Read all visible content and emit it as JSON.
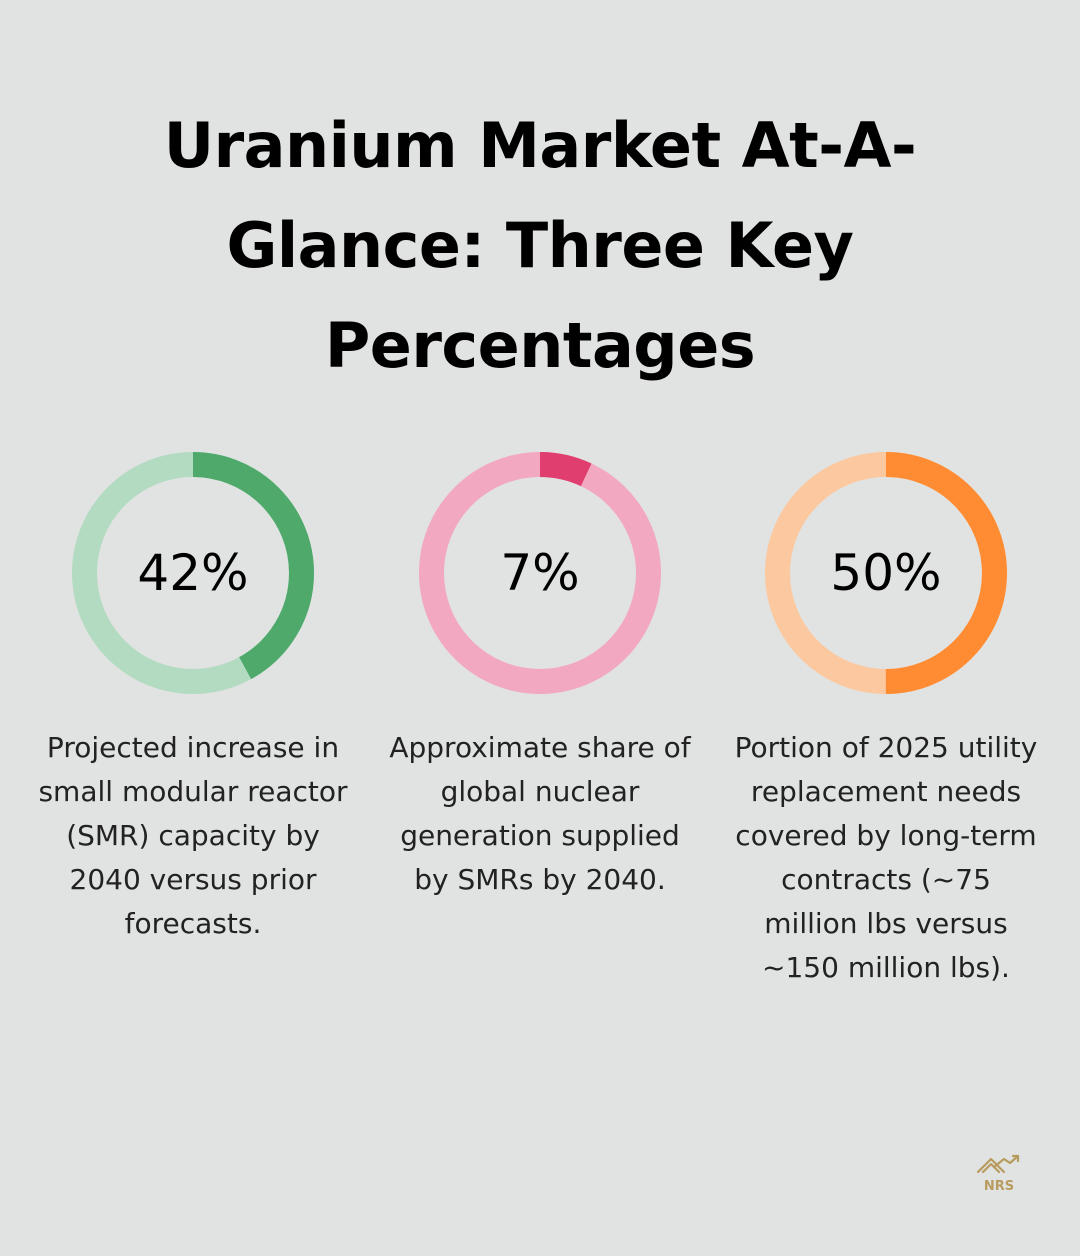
{
  "title": "Uranium Market At-A-Glance: Three Key Percentages",
  "chart_data": [
    {
      "type": "pie",
      "value": 42,
      "label": "42%",
      "description": "Projected increase in small modular reactor (SMR) capacity by 2040 versus prior forecasts.",
      "colors": {
        "fill": "#4ea96b",
        "track": "#b3dbc2"
      }
    },
    {
      "type": "pie",
      "value": 7,
      "label": "7%",
      "description": "Approximate share of global nuclear generation supplied by SMRs by 2040.",
      "colors": {
        "fill": "#e03e6e",
        "track": "#f2a8c0"
      }
    },
    {
      "type": "pie",
      "value": 50,
      "label": "50%",
      "description": "Portion of 2025 utility replacement needs covered by long-term contracts (~75 million lbs versus ~150 million lbs).",
      "colors": {
        "fill": "#ff8c33",
        "track": "#fcc89f"
      }
    }
  ],
  "logo": {
    "text": "NRS",
    "color": "#b89b5e"
  }
}
